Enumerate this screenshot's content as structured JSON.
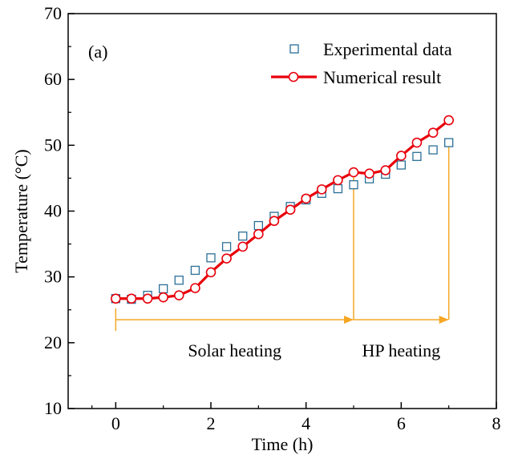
{
  "chart_data": {
    "type": "scatter",
    "panel_label": "(a)",
    "xlabel": "Time (h)",
    "ylabel": "Temperature (°C)",
    "xlim": [
      -1,
      8
    ],
    "ylim": [
      10,
      70
    ],
    "x_ticks": [
      0,
      2,
      4,
      6,
      8
    ],
    "y_ticks": [
      10,
      20,
      30,
      40,
      50,
      60,
      70
    ],
    "series": [
      {
        "name": "Experimental data",
        "style": "hollow-square-markers",
        "color": "#2a6f97",
        "x": [
          0,
          0.33,
          0.67,
          1.0,
          1.33,
          1.67,
          2.0,
          2.33,
          2.67,
          3.0,
          3.33,
          3.67,
          4.0,
          4.33,
          4.67,
          5.0,
          5.33,
          5.67,
          6.0,
          6.33,
          6.67,
          7.0
        ],
        "y": [
          26.7,
          26.6,
          27.2,
          28.2,
          29.5,
          31.0,
          32.9,
          34.6,
          36.2,
          37.8,
          39.2,
          40.7,
          41.7,
          42.7,
          43.4,
          44.0,
          44.9,
          45.6,
          47.0,
          48.3,
          49.3,
          50.4
        ]
      },
      {
        "name": "Numerical result",
        "style": "line-with-hollow-circles",
        "color": "#e8000b",
        "x": [
          0,
          0.33,
          0.67,
          1.0,
          1.33,
          1.67,
          2.0,
          2.33,
          2.67,
          3.0,
          3.33,
          3.67,
          4.0,
          4.33,
          4.67,
          5.0,
          5.33,
          5.67,
          6.0,
          6.33,
          6.67,
          7.0
        ],
        "y": [
          26.7,
          26.7,
          26.7,
          26.9,
          27.2,
          28.3,
          30.7,
          32.8,
          34.6,
          36.5,
          38.5,
          40.2,
          41.9,
          43.3,
          44.7,
          45.9,
          45.7,
          46.2,
          48.4,
          50.4,
          51.9,
          53.8
        ]
      }
    ],
    "annotations": [
      {
        "text": "Solar heating",
        "x_start": 0,
        "x_end": 5,
        "arrow_y": 23.5,
        "color": "#1f5e6e"
      },
      {
        "text": "HP heating",
        "x_start": 5,
        "x_end": 7,
        "arrow_y": 23.5,
        "color": "#1f5e6e"
      }
    ],
    "arrow_color": "#f5a623",
    "vertical_markers": [
      {
        "x": 5,
        "y_top": 45.9
      },
      {
        "x": 7,
        "y_top": 50.4
      }
    ],
    "grid": false,
    "legend_position": "top-right"
  }
}
